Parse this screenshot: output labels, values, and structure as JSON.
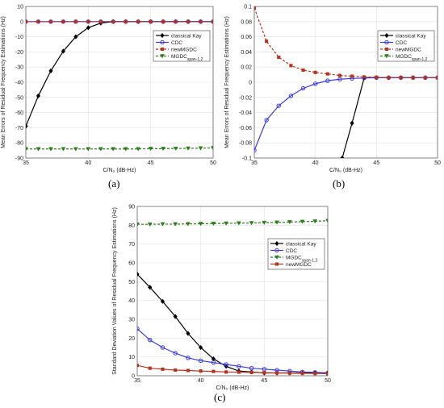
{
  "panels": [
    {
      "label": "(a)",
      "chart_data": {
        "type": "line",
        "xlabel": "C/N₀ (dB-Hz)",
        "ylabel": "Mean Errors of Residual Frequency Estimations (Hz)",
        "xlim": [
          35,
          50
        ],
        "ylim": [
          -90,
          10
        ],
        "xticks": [
          35,
          40,
          45,
          50
        ],
        "yticks": [
          10,
          0,
          -10,
          -20,
          -30,
          -40,
          -50,
          -60,
          -70,
          -80,
          -90
        ],
        "grid": true,
        "legend_position": "top-right",
        "series": [
          {
            "name": "classical Kay",
            "color": "#000000",
            "marker": "diamond",
            "dash": "solid",
            "x": [
              35,
              36,
              37,
              38,
              39,
              40,
              41,
              42,
              43,
              44,
              45,
              46,
              47,
              48,
              49,
              50
            ],
            "y": [
              -69,
              -49,
              -32.5,
              -19.5,
              -10,
              -4,
              -1,
              0,
              0,
              0,
              0,
              0,
              0,
              0,
              0,
              0
            ]
          },
          {
            "name": "CDC",
            "color": "#3a3adf",
            "marker": "circle",
            "dash": "solid",
            "x": [
              35,
              36,
              37,
              38,
              39,
              40,
              41,
              42,
              43,
              44,
              45,
              46,
              47,
              48,
              49,
              50
            ],
            "y": [
              0,
              0,
              0,
              0,
              0,
              0,
              0,
              0,
              0,
              0,
              0,
              0,
              0,
              0,
              0,
              0
            ]
          },
          {
            "name": "newMGDC",
            "color": "#b5331f",
            "marker": "square",
            "dash": "dashed",
            "x": [
              35,
              36,
              37,
              38,
              39,
              40,
              41,
              42,
              43,
              44,
              45,
              46,
              47,
              48,
              49,
              50
            ],
            "y": [
              0,
              0,
              0,
              0,
              0,
              0,
              0,
              0,
              0,
              0,
              0,
              0,
              0,
              0,
              0,
              0
            ]
          },
          {
            "name": "MGDC",
            "name_sub": "span-1,2",
            "color": "#2e7d1e",
            "marker": "triangle-down",
            "dash": "dashed",
            "x": [
              35,
              36,
              37,
              38,
              39,
              40,
              41,
              42,
              43,
              44,
              45,
              46,
              47,
              48,
              49,
              50
            ],
            "y": [
              -84,
              -84,
              -84,
              -84,
              -84,
              -84,
              -84,
              -84,
              -84,
              -84,
              -83.8,
              -83.8,
              -83.7,
              -83.6,
              -83.5,
              -83.3
            ]
          }
        ]
      }
    },
    {
      "label": "(b)",
      "chart_data": {
        "type": "line",
        "xlabel": "C/N₀ (dB-Hz)",
        "ylabel": "Mean Errors of Residual Frequency Estimations (Hz)",
        "xlim": [
          35,
          50
        ],
        "ylim": [
          -0.1,
          0.1
        ],
        "xticks": [
          35,
          40,
          45,
          50
        ],
        "yticks": [
          "0.1",
          "0.08",
          "0.06",
          "0.04",
          "0.02",
          "0",
          "-0.02",
          "-0.04",
          "-0.06",
          "-0.08",
          "-0.1"
        ],
        "grid": true,
        "legend_position": "top-right",
        "series": [
          {
            "name": "classical Kay",
            "color": "#000000",
            "marker": "diamond",
            "dash": "solid",
            "x": [
              42.2,
              43,
              44,
              45,
              46,
              47,
              48,
              49,
              50
            ],
            "y": [
              -0.1,
              -0.054,
              0.006,
              0.006,
              0.006,
              0.006,
              0.006,
              0.006,
              0.006
            ]
          },
          {
            "name": "CDC",
            "color": "#3a3adf",
            "marker": "circle",
            "dash": "solid",
            "x": [
              35,
              36,
              37,
              38,
              39,
              40,
              41,
              42,
              43,
              44,
              45,
              46,
              47,
              48,
              49,
              50
            ],
            "y": [
              -0.09,
              -0.05,
              -0.031,
              -0.018,
              -0.008,
              -0.002,
              0.002,
              0.004,
              0.005,
              0.0055,
              0.006,
              0.006,
              0.006,
              0.006,
              0.006,
              0.006
            ]
          },
          {
            "name": "newMGDC",
            "color": "#b5331f",
            "marker": "square",
            "dash": "dashed",
            "x": [
              35,
              36,
              37,
              38,
              39,
              40,
              41,
              42,
              43,
              44,
              45,
              46,
              47,
              48,
              49,
              50
            ],
            "y": [
              0.098,
              0.054,
              0.033,
              0.022,
              0.016,
              0.013,
              0.011,
              0.009,
              0.008,
              0.007,
              0.0065,
              0.0062,
              0.006,
              0.006,
              0.006,
              0.006
            ]
          },
          {
            "name": "MGDC",
            "name_sub": "span-1,2",
            "color": "#2e7d1e",
            "marker": "triangle-down",
            "dash": "dashed",
            "x": [],
            "y": []
          }
        ]
      }
    },
    {
      "label": "(c)",
      "chart_data": {
        "type": "line",
        "xlabel": "C/N₀ (dB-Hz)",
        "ylabel": "Standard Deviation Values of Residual Frequency Estimations (Hz)",
        "xlim": [
          35,
          50
        ],
        "ylim": [
          0,
          90
        ],
        "xticks": [
          35,
          40,
          45,
          50
        ],
        "yticks": [
          90,
          80,
          70,
          60,
          50,
          40,
          30,
          20,
          10,
          0
        ],
        "grid": true,
        "legend_position": "top-right",
        "series": [
          {
            "name": "classical Kay",
            "color": "#000000",
            "marker": "diamond",
            "dash": "solid",
            "x": [
              35,
              36,
              37,
              38,
              39,
              40,
              41,
              42,
              43,
              44,
              45,
              46,
              47,
              48,
              49,
              50
            ],
            "y": [
              54,
              47,
              39.5,
              31.5,
              22.5,
              15,
              9,
              5,
              2.5,
              2,
              1.5,
              1.5,
              1.5,
              1.5,
              1.5,
              1.5
            ]
          },
          {
            "name": "CDC",
            "color": "#3a3adf",
            "marker": "circle",
            "dash": "solid",
            "x": [
              35,
              36,
              37,
              38,
              39,
              40,
              41,
              42,
              43,
              44,
              45,
              46,
              47,
              48,
              49,
              50
            ],
            "y": [
              25,
              19,
              15,
              12,
              9.5,
              8,
              7,
              6,
              5,
              4,
              3.5,
              3,
              2.5,
              2,
              1.8,
              1.5
            ]
          },
          {
            "name": "MGDC",
            "name_sub": "span-1,2",
            "color": "#2e7d1e",
            "marker": "triangle-down",
            "dash": "dashed",
            "x": [
              35,
              36,
              37,
              38,
              39,
              40,
              41,
              42,
              43,
              44,
              45,
              46,
              47,
              48,
              49,
              50
            ],
            "y": [
              80.5,
              80.5,
              80.6,
              80.6,
              80.7,
              80.8,
              80.9,
              81,
              81.1,
              81.2,
              81.4,
              81.5,
              81.7,
              81.9,
              82.1,
              82.4
            ]
          },
          {
            "name": "newMGDC",
            "color": "#b5331f",
            "marker": "square",
            "dash": "solid",
            "x": [
              35,
              36,
              37,
              38,
              39,
              40,
              41,
              42,
              43,
              44,
              45,
              46,
              47,
              48,
              49,
              50
            ],
            "y": [
              5.5,
              4,
              3.5,
              3,
              2.8,
              2.5,
              2.3,
              2,
              1.9,
              1.8,
              1.6,
              1.5,
              1.4,
              1.3,
              1.2,
              1.1
            ]
          }
        ]
      }
    }
  ]
}
